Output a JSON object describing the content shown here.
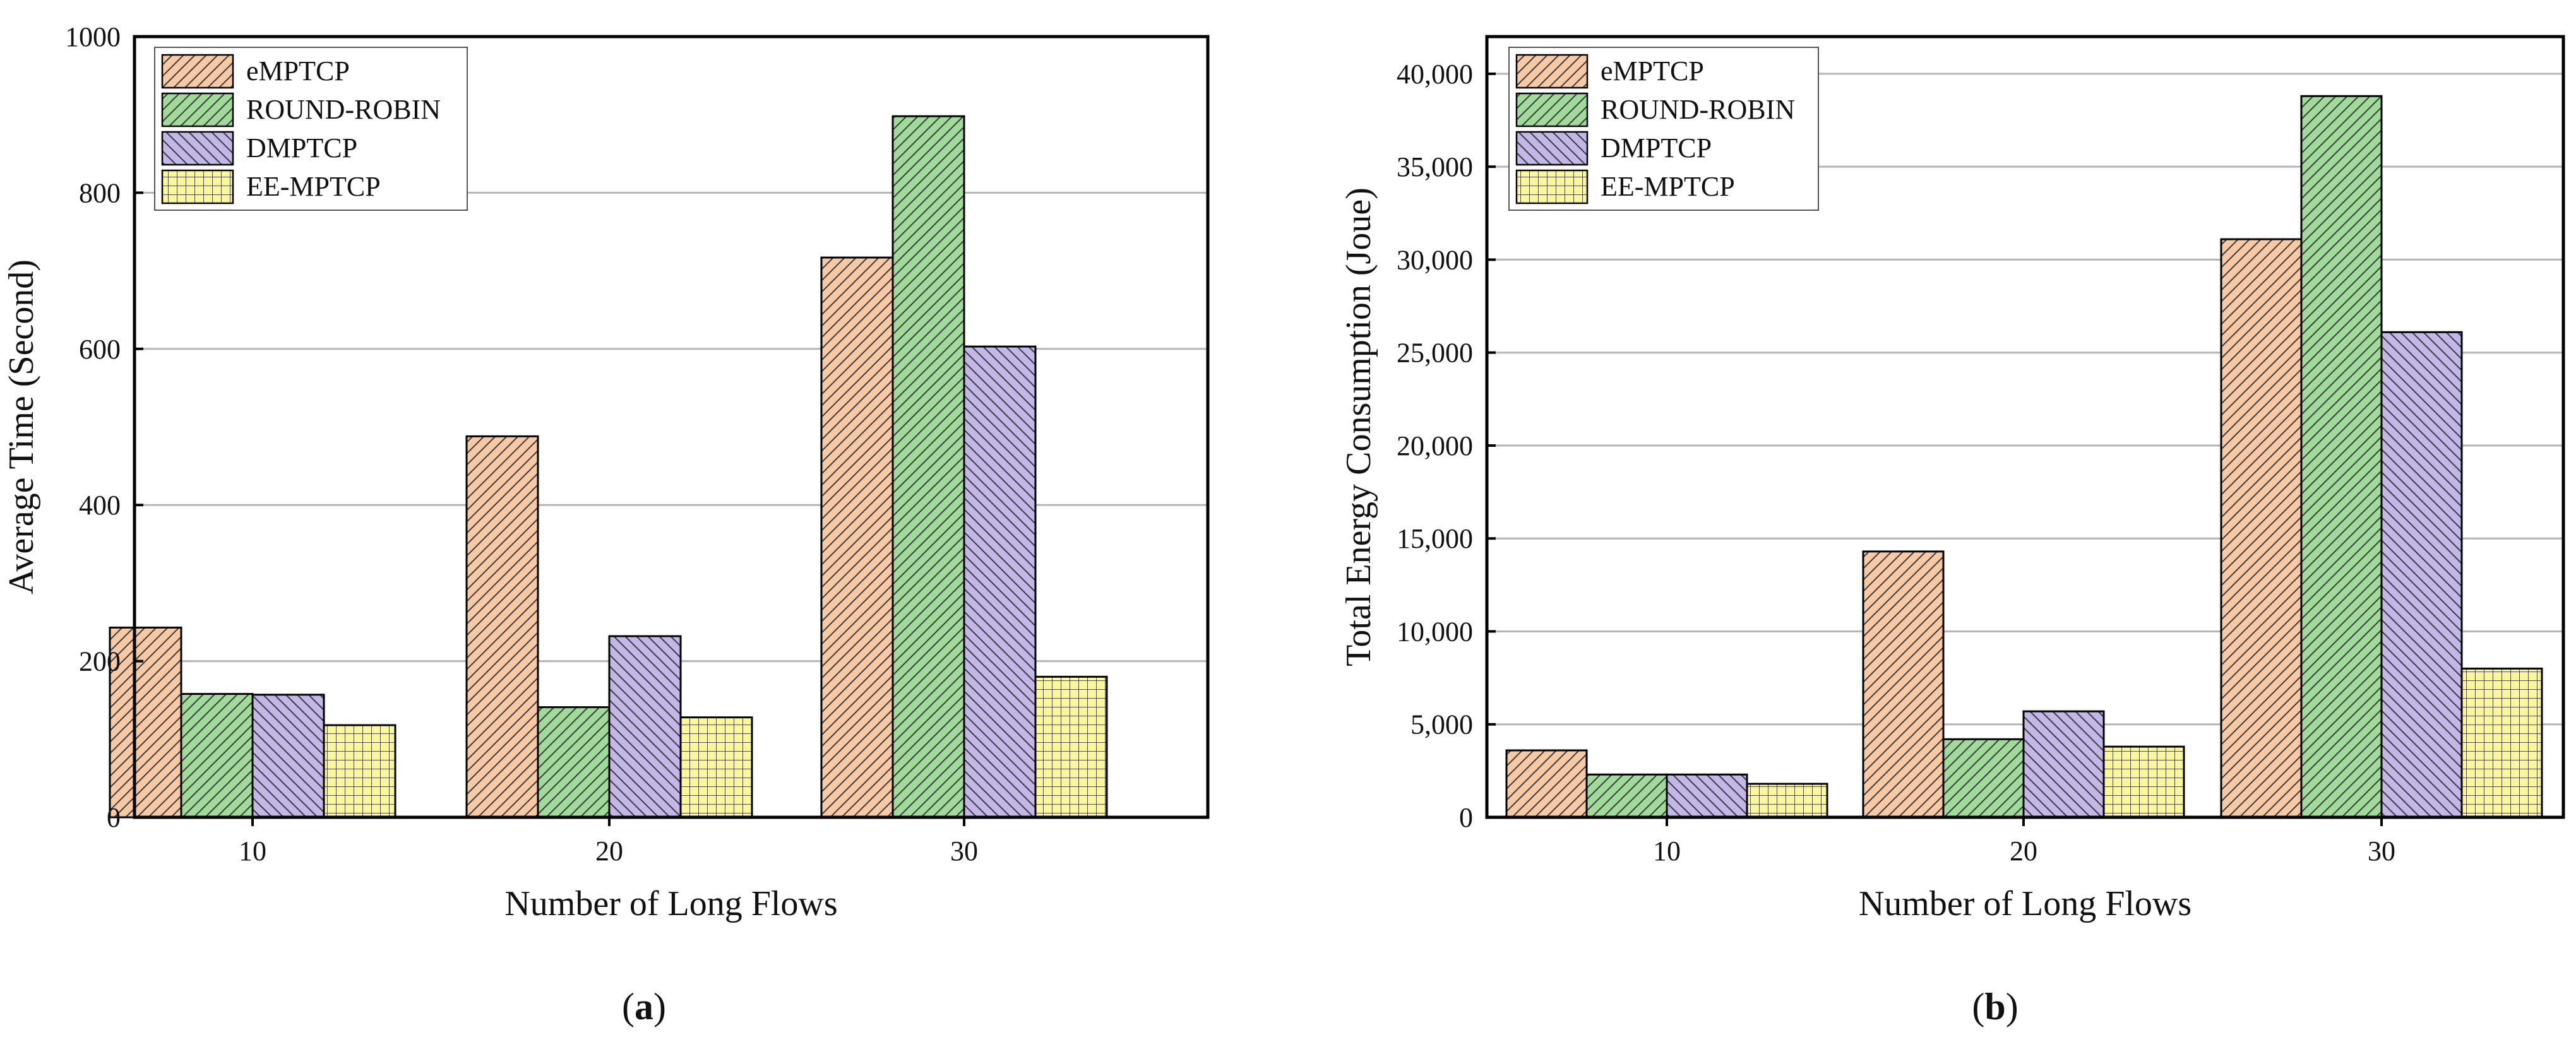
{
  "colors": {
    "eMPTCP": "#f8c9a3",
    "ROUND-ROBIN": "#9fdc9a",
    "DMPTCP": "#c4b6e6",
    "EE-MPTCP": "#fbf79a",
    "grid": "#b5b5b5"
  },
  "patterns": {
    "eMPTCP": "diag-right",
    "ROUND-ROBIN": "diag-right",
    "DMPTCP": "diag-left",
    "EE-MPTCP": "grid"
  },
  "chart_data": [
    {
      "id": "a",
      "type": "bar",
      "panel_label": "a",
      "title": "",
      "xlabel": "Number of Long Flows",
      "ylabel": "Average Time (Second)",
      "categories": [
        "10",
        "20",
        "30"
      ],
      "ylim": [
        0,
        1000
      ],
      "yticks": [
        0,
        200,
        400,
        600,
        800,
        1000
      ],
      "ytick_labels": [
        "0",
        "200",
        "400",
        "600",
        "800",
        "1000"
      ],
      "grid": true,
      "legend_position": "top-left",
      "series": [
        {
          "name": "eMPTCP",
          "values": [
            243,
            488,
            717
          ]
        },
        {
          "name": "ROUND-ROBIN",
          "values": [
            158,
            141,
            898
          ]
        },
        {
          "name": "DMPTCP",
          "values": [
            157,
            232,
            603
          ]
        },
        {
          "name": "EE-MPTCP",
          "values": [
            118,
            128,
            180
          ]
        }
      ]
    },
    {
      "id": "b",
      "type": "bar",
      "panel_label": "b",
      "title": "",
      "xlabel": "Number of Long Flows",
      "ylabel": "Total Energy Consumption (Joue)",
      "categories": [
        "10",
        "20",
        "30"
      ],
      "ylim": [
        0,
        42000
      ],
      "yticks": [
        0,
        5000,
        10000,
        15000,
        20000,
        25000,
        30000,
        35000,
        40000
      ],
      "ytick_labels": [
        "0",
        "5,000",
        "10,000",
        "15,000",
        "20,000",
        "25,000",
        "30,000",
        "35,000",
        "40,000"
      ],
      "grid": true,
      "legend_position": "top-left",
      "series": [
        {
          "name": "eMPTCP",
          "values": [
            3600,
            14300,
            31100
          ]
        },
        {
          "name": "ROUND-ROBIN",
          "values": [
            2300,
            4200,
            38800
          ]
        },
        {
          "name": "DMPTCP",
          "values": [
            2300,
            5700,
            26100
          ]
        },
        {
          "name": "EE-MPTCP",
          "values": [
            1800,
            3800,
            8000
          ]
        }
      ]
    }
  ]
}
